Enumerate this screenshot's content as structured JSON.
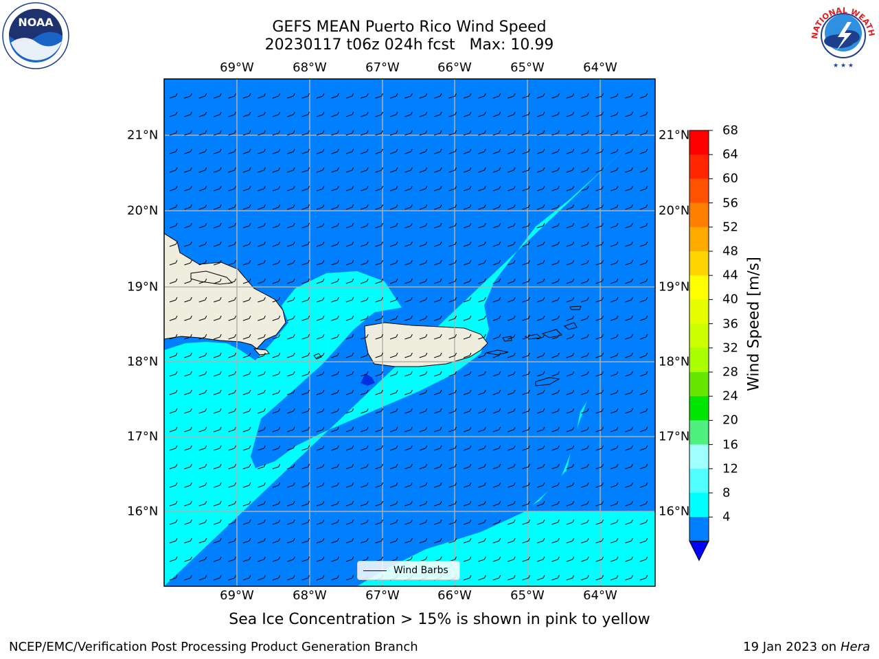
{
  "title": {
    "line1": "GEFS MEAN Puerto Rico Wind Speed",
    "line2": "20230117 t06z 024h fcst   Max: 10.99"
  },
  "map": {
    "lon_labels": [
      "69°W",
      "68°W",
      "67°W",
      "66°W",
      "65°W",
      "64°W"
    ],
    "lat_labels": [
      "21°N",
      "20°N",
      "19°N",
      "18°N",
      "17°N",
      "16°N"
    ],
    "colors": {
      "deep_blue": "#0080ff",
      "cyan": "#00ffff",
      "land": "#efedde",
      "gridline": "#b0b0b0",
      "low_blue": "#0030e0"
    }
  },
  "legend": {
    "label": "Wind Barbs"
  },
  "colorbar": {
    "label": "Wind Speed [m/s]",
    "ticks": [
      "68",
      "64",
      "60",
      "56",
      "52",
      "48",
      "44",
      "40",
      "36",
      "32",
      "28",
      "24",
      "20",
      "16",
      "12",
      "8",
      "4"
    ],
    "colors": [
      "#ff0000",
      "#ff2600",
      "#ff5200",
      "#ff8000",
      "#ffaa00",
      "#ffd400",
      "#ffff00",
      "#e6ff00",
      "#ccff00",
      "#aaff00",
      "#66e600",
      "#00e600",
      "#50f080",
      "#a0ffff",
      "#50ffff",
      "#00ffff",
      "#0080ff",
      "#0000ff"
    ]
  },
  "subtitle": "Sea Ice Concentration > 15% is shown in pink to yellow",
  "footer": {
    "left": "NCEP/EMC/Verification Post Processing Product Generation Branch",
    "right_date": "19 Jan 2023 on",
    "right_host": "Hera"
  },
  "logos": {
    "left": {
      "icon": "noaa-logo",
      "text": "NOAA"
    },
    "right": {
      "icon": "nws-logo",
      "text": "NATIONAL WEATHER SERVICE"
    }
  }
}
